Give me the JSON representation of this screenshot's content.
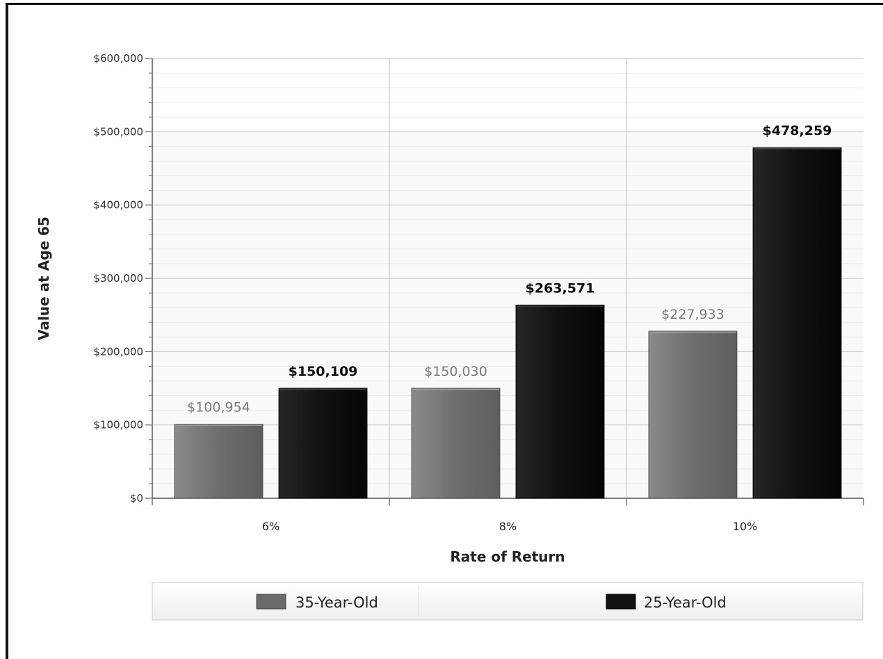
{
  "chart_data": {
    "type": "bar",
    "title": "",
    "xlabel": "Rate of Return",
    "ylabel": "Value at Age 65",
    "categories": [
      "6%",
      "8%",
      "10%"
    ],
    "series": [
      {
        "name": "35-Year-Old",
        "values": [
          100954,
          150030,
          227933
        ],
        "labels": [
          "$100,954",
          "$150,030",
          "$227,933"
        ],
        "color": "#6b6b6b"
      },
      {
        "name": "25-Year-Old",
        "values": [
          150109,
          263571,
          478259
        ],
        "labels": [
          "$150,109",
          "$263,571",
          "$478,259"
        ],
        "color": "#111111"
      }
    ],
    "ylim": [
      0,
      600000
    ],
    "yticks": [
      0,
      100000,
      200000,
      300000,
      400000,
      500000,
      600000
    ],
    "ytick_labels": [
      "$0",
      "$100,000",
      "$200,000",
      "$300,000",
      "$400,000",
      "$500,000",
      "$600,000"
    ],
    "grid": true,
    "legend_position": "bottom"
  }
}
